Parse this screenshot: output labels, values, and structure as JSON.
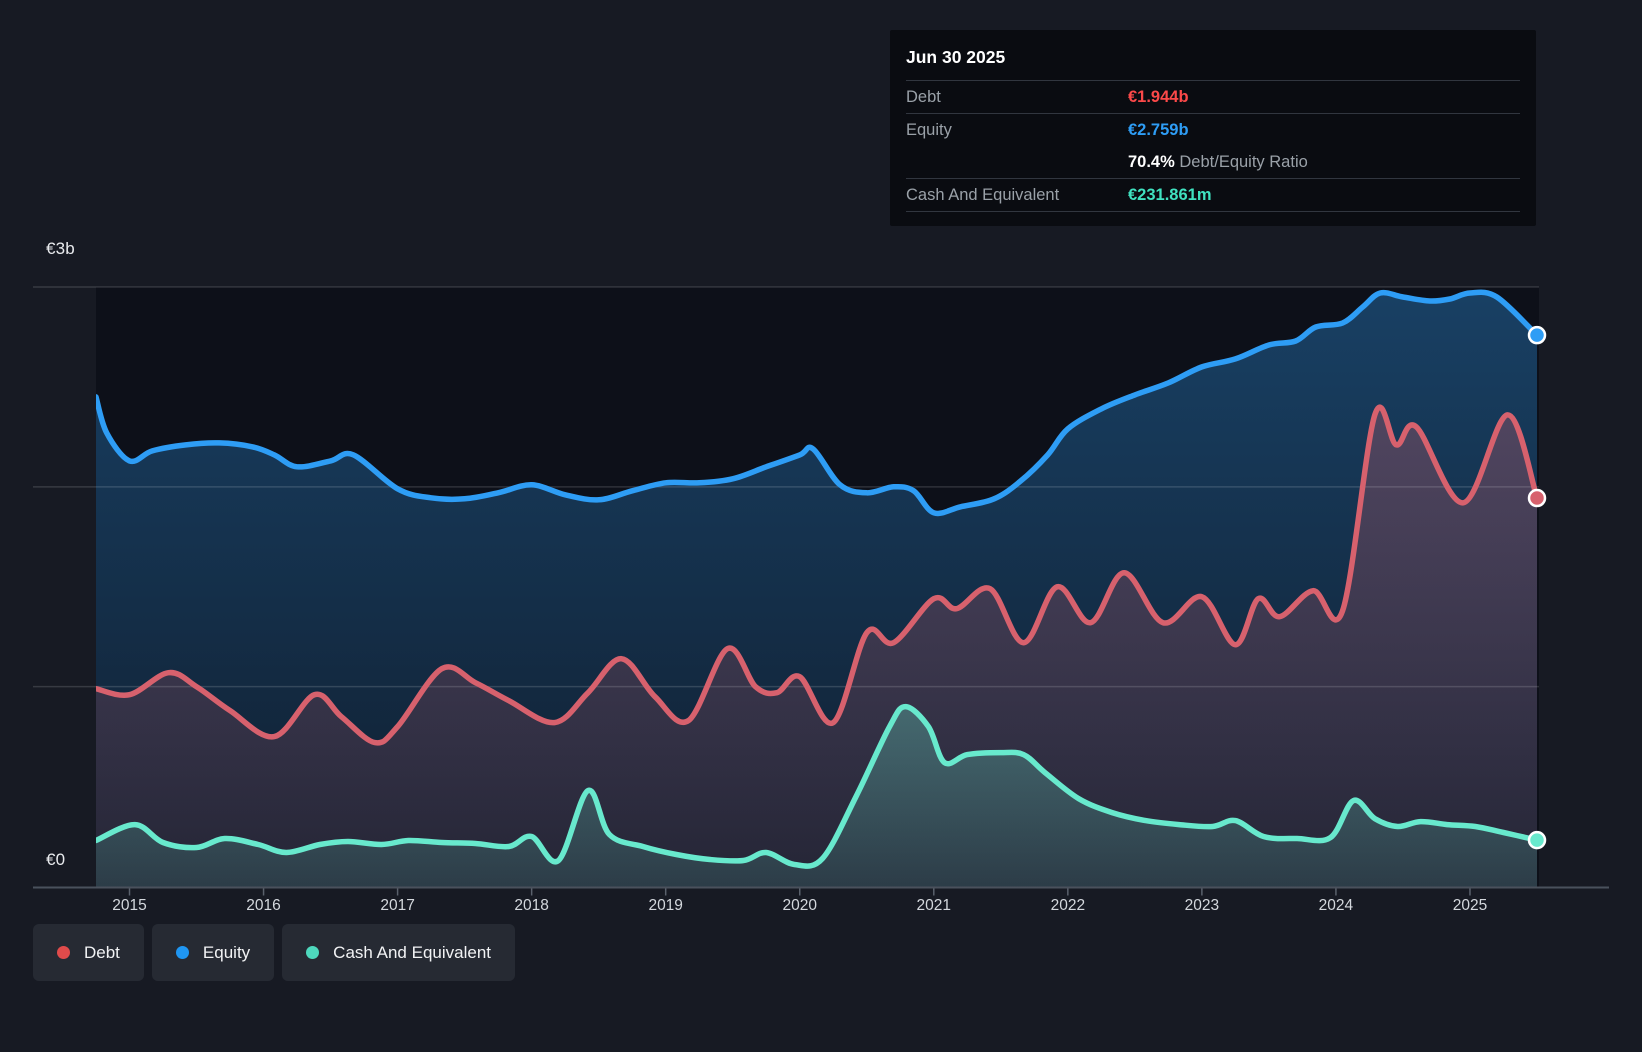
{
  "colors": {
    "page_bg": "#171a23",
    "plot_bg": "#0d1019",
    "grid": "rgba(255,255,255,0.14)",
    "axis": "#4a515c",
    "tick": "#5a616c",
    "tooltip_bg": "#0a0c11",
    "tooltip_label": "#9aa1a8",
    "legend_bg": "#262a33"
  },
  "y_axis": {
    "top_label": "€3b",
    "bottom_label": "€0"
  },
  "x_axis": {
    "ticks": [
      "2015",
      "2016",
      "2017",
      "2018",
      "2019",
      "2020",
      "2021",
      "2022",
      "2023",
      "2024",
      "2025"
    ]
  },
  "tooltip": {
    "date": "Jun 30 2025",
    "debt": {
      "label": "Debt",
      "value": "€1.944b",
      "color": "#fb4949"
    },
    "equity": {
      "label": "Equity",
      "value": "€2.759b",
      "color": "#2e9df5"
    },
    "ratio": {
      "pct": "70.4%",
      "label": "Debt/Equity Ratio"
    },
    "cash": {
      "label": "Cash And Equivalent",
      "value": "€231.861m",
      "color": "#40e2c0"
    }
  },
  "legend": [
    {
      "label": "Debt",
      "color": "#e04b4b"
    },
    {
      "label": "Equity",
      "color": "#1f96f2"
    },
    {
      "label": "Cash And Equivalent",
      "color": "#4ed8bd"
    }
  ],
  "chart_data": {
    "type": "area",
    "title": "Debt, Equity and Cash And Equivalent over time",
    "unit": "billions EUR",
    "x_min": 2014.75,
    "x_max": 2025.5,
    "ylim": [
      0,
      3
    ],
    "y_gridline_values": [
      1,
      2,
      3
    ],
    "x_tick_years": [
      2015,
      2016,
      2017,
      2018,
      2019,
      2020,
      2021,
      2022,
      2023,
      2024,
      2025
    ],
    "legend_position": "bottom-left",
    "grid": true,
    "series": [
      {
        "name": "Equity",
        "color": "#2e9df5",
        "fill_opacity_top": 0.34,
        "fill_opacity_bottom": 0.1,
        "points": [
          [
            2014.75,
            2.45
          ],
          [
            2014.83,
            2.27
          ],
          [
            2015.0,
            2.13
          ],
          [
            2015.17,
            2.18
          ],
          [
            2015.42,
            2.21
          ],
          [
            2015.67,
            2.22
          ],
          [
            2015.92,
            2.2
          ],
          [
            2016.08,
            2.16
          ],
          [
            2016.25,
            2.1
          ],
          [
            2016.5,
            2.13
          ],
          [
            2016.67,
            2.16
          ],
          [
            2017.0,
            1.99
          ],
          [
            2017.25,
            1.945
          ],
          [
            2017.5,
            1.94
          ],
          [
            2017.75,
            1.97
          ],
          [
            2018.0,
            2.01
          ],
          [
            2018.25,
            1.96
          ],
          [
            2018.5,
            1.935
          ],
          [
            2018.75,
            1.98
          ],
          [
            2019.0,
            2.02
          ],
          [
            2019.25,
            2.02
          ],
          [
            2019.5,
            2.04
          ],
          [
            2019.75,
            2.1
          ],
          [
            2020.0,
            2.16
          ],
          [
            2020.1,
            2.19
          ],
          [
            2020.3,
            2.01
          ],
          [
            2020.5,
            1.97
          ],
          [
            2020.7,
            2.0
          ],
          [
            2020.85,
            1.98
          ],
          [
            2021.0,
            1.87
          ],
          [
            2021.2,
            1.9
          ],
          [
            2021.45,
            1.94
          ],
          [
            2021.65,
            2.03
          ],
          [
            2021.85,
            2.16
          ],
          [
            2022.0,
            2.29
          ],
          [
            2022.25,
            2.39
          ],
          [
            2022.5,
            2.46
          ],
          [
            2022.75,
            2.52
          ],
          [
            2023.0,
            2.6
          ],
          [
            2023.25,
            2.64
          ],
          [
            2023.5,
            2.71
          ],
          [
            2023.7,
            2.73
          ],
          [
            2023.85,
            2.8
          ],
          [
            2024.05,
            2.82
          ],
          [
            2024.2,
            2.9
          ],
          [
            2024.33,
            2.97
          ],
          [
            2024.5,
            2.95
          ],
          [
            2024.7,
            2.93
          ],
          [
            2024.85,
            2.94
          ],
          [
            2025.0,
            2.97
          ],
          [
            2025.2,
            2.95
          ],
          [
            2025.5,
            2.759
          ]
        ]
      },
      {
        "name": "Debt",
        "color": "#d7616d",
        "fill_opacity_top": 0.3,
        "fill_opacity_bottom": 0.1,
        "points": [
          [
            2014.75,
            0.99
          ],
          [
            2015.0,
            0.96
          ],
          [
            2015.29,
            1.07
          ],
          [
            2015.5,
            1.0
          ],
          [
            2015.75,
            0.88
          ],
          [
            2016.08,
            0.75
          ],
          [
            2016.38,
            0.96
          ],
          [
            2016.58,
            0.85
          ],
          [
            2016.83,
            0.72
          ],
          [
            2017.0,
            0.8
          ],
          [
            2017.33,
            1.09
          ],
          [
            2017.58,
            1.02
          ],
          [
            2017.83,
            0.93
          ],
          [
            2018.17,
            0.82
          ],
          [
            2018.42,
            0.97
          ],
          [
            2018.67,
            1.14
          ],
          [
            2018.92,
            0.95
          ],
          [
            2019.17,
            0.83
          ],
          [
            2019.46,
            1.19
          ],
          [
            2019.67,
            1.0
          ],
          [
            2019.83,
            0.97
          ],
          [
            2020.0,
            1.05
          ],
          [
            2020.25,
            0.82
          ],
          [
            2020.5,
            1.27
          ],
          [
            2020.7,
            1.22
          ],
          [
            2021.0,
            1.44
          ],
          [
            2021.17,
            1.39
          ],
          [
            2021.42,
            1.49
          ],
          [
            2021.67,
            1.22
          ],
          [
            2021.92,
            1.5
          ],
          [
            2022.17,
            1.32
          ],
          [
            2022.42,
            1.57
          ],
          [
            2022.71,
            1.32
          ],
          [
            2023.0,
            1.45
          ],
          [
            2023.25,
            1.21
          ],
          [
            2023.42,
            1.44
          ],
          [
            2023.58,
            1.35
          ],
          [
            2023.83,
            1.48
          ],
          [
            2024.05,
            1.38
          ],
          [
            2024.29,
            2.36
          ],
          [
            2024.45,
            2.21
          ],
          [
            2024.6,
            2.3
          ],
          [
            2024.95,
            1.92
          ],
          [
            2025.28,
            2.36
          ],
          [
            2025.5,
            1.944
          ]
        ]
      },
      {
        "name": "Cash And Equivalent",
        "color": "#68e9cd",
        "fill_opacity_top": 0.3,
        "fill_opacity_bottom": 0.12,
        "points": [
          [
            2014.75,
            0.23
          ],
          [
            2015.04,
            0.31
          ],
          [
            2015.25,
            0.22
          ],
          [
            2015.5,
            0.195
          ],
          [
            2015.71,
            0.24
          ],
          [
            2015.96,
            0.21
          ],
          [
            2016.17,
            0.17
          ],
          [
            2016.42,
            0.21
          ],
          [
            2016.63,
            0.225
          ],
          [
            2016.88,
            0.21
          ],
          [
            2017.08,
            0.23
          ],
          [
            2017.33,
            0.22
          ],
          [
            2017.58,
            0.215
          ],
          [
            2017.83,
            0.2
          ],
          [
            2018.0,
            0.25
          ],
          [
            2018.2,
            0.13
          ],
          [
            2018.42,
            0.48
          ],
          [
            2018.58,
            0.26
          ],
          [
            2018.83,
            0.2
          ],
          [
            2019.08,
            0.16
          ],
          [
            2019.33,
            0.135
          ],
          [
            2019.58,
            0.13
          ],
          [
            2019.75,
            0.17
          ],
          [
            2019.96,
            0.11
          ],
          [
            2020.17,
            0.14
          ],
          [
            2020.42,
            0.45
          ],
          [
            2020.67,
            0.8
          ],
          [
            2020.79,
            0.9
          ],
          [
            2020.96,
            0.8
          ],
          [
            2021.08,
            0.62
          ],
          [
            2021.25,
            0.66
          ],
          [
            2021.5,
            0.67
          ],
          [
            2021.67,
            0.66
          ],
          [
            2021.83,
            0.57
          ],
          [
            2022.08,
            0.44
          ],
          [
            2022.33,
            0.37
          ],
          [
            2022.58,
            0.33
          ],
          [
            2022.83,
            0.31
          ],
          [
            2023.08,
            0.3
          ],
          [
            2023.25,
            0.33
          ],
          [
            2023.46,
            0.25
          ],
          [
            2023.71,
            0.24
          ],
          [
            2023.96,
            0.245
          ],
          [
            2024.13,
            0.43
          ],
          [
            2024.29,
            0.34
          ],
          [
            2024.46,
            0.3
          ],
          [
            2024.63,
            0.325
          ],
          [
            2024.83,
            0.31
          ],
          [
            2025.04,
            0.3
          ],
          [
            2025.25,
            0.27
          ],
          [
            2025.5,
            0.232
          ]
        ]
      }
    ],
    "end_markers": [
      {
        "series": "Equity",
        "x": 2025.5,
        "y": 2.759
      },
      {
        "series": "Debt",
        "x": 2025.5,
        "y": 1.944
      },
      {
        "series": "Cash And Equivalent",
        "x": 2025.5,
        "y": 0.232
      }
    ]
  }
}
